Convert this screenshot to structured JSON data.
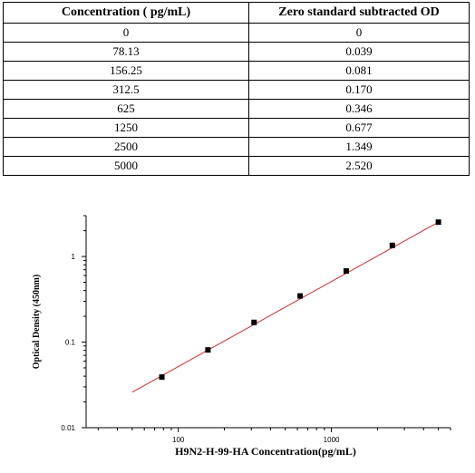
{
  "table": {
    "headers": [
      "Concentration ( pg/mL)",
      "Zero standard subtracted OD"
    ],
    "rows": [
      [
        "0",
        "0"
      ],
      [
        "78.13",
        "0.039"
      ],
      [
        "156.25",
        "0.081"
      ],
      [
        "312.5",
        "0.170"
      ],
      [
        "625",
        "0.346"
      ],
      [
        "1250",
        "0.677"
      ],
      [
        "2500",
        "1.349"
      ],
      [
        "5000",
        "2.520"
      ]
    ]
  },
  "chart_data": {
    "type": "scatter",
    "xlabel": "H9N2-H-99-HA  Concentration(pg/mL)",
    "ylabel": "Optical Density (450nm)",
    "x_scale": "log",
    "y_scale": "log",
    "xlim": [
      25,
      6000
    ],
    "ylim": [
      0.01,
      3
    ],
    "x_ticks": [
      100,
      1000
    ],
    "x_tick_labels": [
      "100",
      "1000"
    ],
    "y_ticks": [
      0.01,
      0.1,
      1
    ],
    "y_tick_labels": [
      "0.01",
      "0.1",
      "1"
    ],
    "points": {
      "x": [
        78.13,
        156.25,
        312.5,
        625,
        1250,
        2500,
        5000
      ],
      "y": [
        0.039,
        0.081,
        0.17,
        0.346,
        0.677,
        1.349,
        2.52
      ]
    },
    "fit_line": {
      "x": [
        50,
        5000
      ],
      "y": [
        0.026,
        2.52
      ]
    },
    "grid": false,
    "colors": {
      "points": "#000000",
      "fit_line": "#d42a2a"
    }
  }
}
